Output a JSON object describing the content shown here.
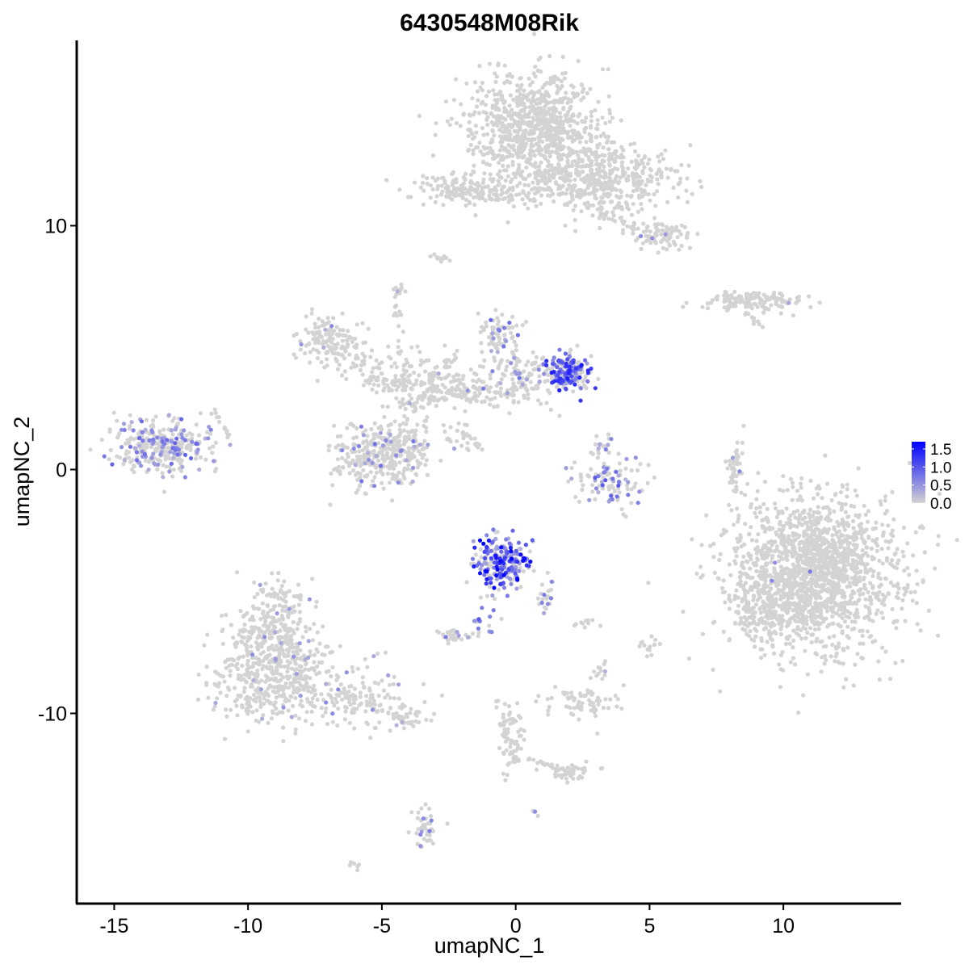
{
  "chart_data": {
    "type": "scatter",
    "title": "6430548M08Rik",
    "xlabel": "umapNC_1",
    "ylabel": "umapNC_2",
    "xlim": [
      -16.4,
      14.4
    ],
    "ylim": [
      -17.8,
      17.6
    ],
    "x_ticks": [
      {
        "value": -15,
        "label": "-15"
      },
      {
        "value": -10,
        "label": "-10"
      },
      {
        "value": -5,
        "label": "-5"
      },
      {
        "value": 0,
        "label": "0"
      },
      {
        "value": 5,
        "label": "5"
      },
      {
        "value": 10,
        "label": "10"
      }
    ],
    "y_ticks": [
      {
        "value": -10,
        "label": "-10"
      },
      {
        "value": 0,
        "label": "0"
      },
      {
        "value": 10,
        "label": "10"
      }
    ],
    "grid": false,
    "legend": {
      "placement": "right",
      "low_color": "#d3d3d3",
      "high_color": "#0000ff",
      "min": 0.0,
      "max": 1.7,
      "ticks": [
        {
          "value": 0.0,
          "label": "0.0"
        },
        {
          "value": 0.5,
          "label": "0.5"
        },
        {
          "value": 1.0,
          "label": "1.0"
        },
        {
          "value": 1.5,
          "label": "1.5"
        }
      ]
    },
    "clusters": [
      {
        "cx": 0.7,
        "cy": 14.0,
        "sx": 1.4,
        "sy": 1.3,
        "n": 900,
        "expr_frac": 0.0,
        "expr_max": 0.5
      },
      {
        "cx": 3.3,
        "cy": 12.0,
        "sx": 1.4,
        "sy": 0.8,
        "n": 450,
        "expr_frac": 0.0,
        "expr_max": 0.5
      },
      {
        "cx": -1.8,
        "cy": 11.5,
        "sx": 1.1,
        "sy": 0.35,
        "n": 150,
        "expr_frac": 0.0,
        "expr_max": 0.5
      },
      {
        "cx": 5.5,
        "cy": 9.6,
        "sx": 0.5,
        "sy": 0.35,
        "n": 80,
        "expr_frac": 0.03,
        "expr_max": 0.6
      },
      {
        "cx": -2.8,
        "cy": 8.7,
        "sx": 0.25,
        "sy": 0.12,
        "n": 12,
        "expr_frac": 0.0,
        "expr_max": 0.5
      },
      {
        "cx": 8.8,
        "cy": 6.9,
        "sx": 1.0,
        "sy": 0.22,
        "n": 140,
        "expr_frac": 0.01,
        "expr_max": 0.5
      },
      {
        "cx": -4.4,
        "cy": 7.3,
        "sx": 0.15,
        "sy": 0.18,
        "n": 12,
        "expr_frac": 0.05,
        "expr_max": 0.5
      },
      {
        "cx": -13.2,
        "cy": 1.0,
        "sx": 1.0,
        "sy": 0.6,
        "n": 320,
        "expr_frac": 0.25,
        "expr_max": 0.9
      },
      {
        "cx": -7.0,
        "cy": 5.3,
        "sx": 0.6,
        "sy": 0.5,
        "n": 110,
        "expr_frac": 0.05,
        "expr_max": 0.6
      },
      {
        "cx": -5.5,
        "cy": 0.5,
        "sx": 0.75,
        "sy": 0.7,
        "n": 220,
        "expr_frac": 0.08,
        "expr_max": 0.8
      },
      {
        "cx": -4.1,
        "cy": 0.8,
        "sx": 0.55,
        "sy": 0.8,
        "n": 160,
        "expr_frac": 0.12,
        "expr_max": 0.8
      },
      {
        "cx": -4.2,
        "cy": 3.9,
        "sx": 1.2,
        "sy": 0.5,
        "n": 120,
        "expr_frac": 0.04,
        "expr_max": 0.5
      },
      {
        "cx": -0.9,
        "cy": 3.2,
        "sx": 1.6,
        "sy": 0.4,
        "n": 130,
        "expr_frac": 0.08,
        "expr_max": 0.7
      },
      {
        "cx": -0.7,
        "cy": 5.5,
        "sx": 0.45,
        "sy": 0.45,
        "n": 70,
        "expr_frac": 0.2,
        "expr_max": 0.9
      },
      {
        "cx": 0.3,
        "cy": 4.2,
        "sx": 0.9,
        "sy": 0.45,
        "n": 90,
        "expr_frac": 0.2,
        "expr_max": 0.9
      },
      {
        "cx": 2.0,
        "cy": 4.0,
        "sx": 0.45,
        "sy": 0.42,
        "n": 170,
        "expr_frac": 0.55,
        "expr_max": 1.5
      },
      {
        "cx": -2.0,
        "cy": 1.2,
        "sx": 0.4,
        "sy": 0.5,
        "n": 20,
        "expr_frac": 0.05,
        "expr_max": 0.6
      },
      {
        "cx": 3.4,
        "cy": -0.5,
        "sx": 0.8,
        "sy": 0.5,
        "n": 90,
        "expr_frac": 0.35,
        "expr_max": 1.0
      },
      {
        "cx": 3.3,
        "cy": 0.8,
        "sx": 0.3,
        "sy": 0.35,
        "n": 20,
        "expr_frac": 0.3,
        "expr_max": 0.9
      },
      {
        "cx": 8.2,
        "cy": -0.2,
        "sx": 0.2,
        "sy": 0.9,
        "n": 45,
        "expr_frac": 0.02,
        "expr_max": 0.6
      },
      {
        "cx": 11.1,
        "cy": -4.3,
        "sx": 1.8,
        "sy": 1.8,
        "n": 1700,
        "expr_frac": 0.002,
        "expr_max": 0.8
      },
      {
        "cx": 9.2,
        "cy": -6.0,
        "sx": 0.6,
        "sy": 0.6,
        "n": 100,
        "expr_frac": 0.0,
        "expr_max": 0.5
      },
      {
        "cx": -0.5,
        "cy": -3.8,
        "sx": 0.6,
        "sy": 0.6,
        "n": 240,
        "expr_frac": 0.7,
        "expr_max": 1.7
      },
      {
        "cx": 1.1,
        "cy": -5.2,
        "sx": 0.2,
        "sy": 0.5,
        "n": 22,
        "expr_frac": 0.15,
        "expr_max": 0.9
      },
      {
        "cx": -1.3,
        "cy": -6.0,
        "sx": 0.3,
        "sy": 0.5,
        "n": 18,
        "expr_frac": 0.7,
        "expr_max": 1.0
      },
      {
        "cx": -2.3,
        "cy": -6.8,
        "sx": 0.4,
        "sy": 0.15,
        "n": 30,
        "expr_frac": 0.2,
        "expr_max": 0.7
      },
      {
        "cx": -9.0,
        "cy": -6.8,
        "sx": 0.9,
        "sy": 1.2,
        "n": 320,
        "expr_frac": 0.04,
        "expr_max": 0.6
      },
      {
        "cx": -9.0,
        "cy": -8.8,
        "sx": 1.5,
        "sy": 0.9,
        "n": 340,
        "expr_frac": 0.04,
        "expr_max": 0.6
      },
      {
        "cx": -5.6,
        "cy": -9.5,
        "sx": 1.3,
        "sy": 0.55,
        "n": 110,
        "expr_frac": 0.06,
        "expr_max": 0.6
      },
      {
        "cx": -4.0,
        "cy": -10.3,
        "sx": 0.4,
        "sy": 0.2,
        "n": 25,
        "expr_frac": 0.1,
        "expr_max": 0.6
      },
      {
        "cx": 2.5,
        "cy": -9.5,
        "sx": 0.8,
        "sy": 0.4,
        "n": 70,
        "expr_frac": 0.0,
        "expr_max": 0.5
      },
      {
        "cx": 3.1,
        "cy": -8.3,
        "sx": 0.2,
        "sy": 0.3,
        "n": 12,
        "expr_frac": 0.1,
        "expr_max": 0.5
      },
      {
        "cx": 2.6,
        "cy": -6.3,
        "sx": 0.3,
        "sy": 0.12,
        "n": 10,
        "expr_frac": 0.1,
        "expr_max": 0.5
      },
      {
        "cx": 5.0,
        "cy": -7.3,
        "sx": 0.2,
        "sy": 0.25,
        "n": 14,
        "expr_frac": 0.0,
        "expr_max": 0.5
      },
      {
        "cx": 2.0,
        "cy": -12.4,
        "sx": 0.5,
        "sy": 0.2,
        "n": 35,
        "expr_frac": 0.0,
        "expr_max": 0.5
      },
      {
        "cx": -0.2,
        "cy": -11.0,
        "sx": 0.3,
        "sy": 0.9,
        "n": 55,
        "expr_frac": 0.0,
        "expr_max": 0.5
      },
      {
        "cx": -3.4,
        "cy": -14.8,
        "sx": 0.25,
        "sy": 0.55,
        "n": 40,
        "expr_frac": 0.25,
        "expr_max": 0.9
      },
      {
        "cx": -6.0,
        "cy": -16.3,
        "sx": 0.15,
        "sy": 0.08,
        "n": 6,
        "expr_frac": 0.0,
        "expr_max": 0.5
      },
      {
        "cx": 0.7,
        "cy": -14.0,
        "sx": 0.1,
        "sy": 0.1,
        "n": 4,
        "expr_frac": 0.5,
        "expr_max": 0.6
      }
    ],
    "bridges": [
      {
        "x1": -7.3,
        "y1": 5.9,
        "x2": -4.0,
        "y2": 2.5,
        "n": 60,
        "spread": 0.35
      },
      {
        "x1": -4.3,
        "y1": 2.5,
        "x2": -1.2,
        "y2": 3.5,
        "n": 70,
        "spread": 0.35
      },
      {
        "x1": -4.4,
        "y1": 6.8,
        "x2": -4.2,
        "y2": 3.0,
        "n": 20,
        "spread": 0.2
      },
      {
        "x1": -2.0,
        "y1": 5.0,
        "x2": -3.5,
        "y2": 3.0,
        "n": 25,
        "spread": 0.3
      },
      {
        "x1": -2.0,
        "y1": 1.5,
        "x2": -1.1,
        "y2": 0.7,
        "n": 18,
        "spread": 0.08
      },
      {
        "x1": -2.4,
        "y1": 11.5,
        "x2": 0.2,
        "y2": 11.0,
        "n": 30,
        "spread": 0.25
      },
      {
        "x1": 0.5,
        "y1": 11.0,
        "x2": 1.7,
        "y2": 12.5,
        "n": 40,
        "spread": 0.4
      },
      {
        "x1": 2.4,
        "y1": 10.8,
        "x2": 4.8,
        "y2": 9.8,
        "n": 35,
        "spread": 0.3
      },
      {
        "x1": 8.5,
        "y1": 6.5,
        "x2": 9.2,
        "y2": 5.8,
        "n": 12,
        "spread": 0.12
      },
      {
        "x1": -11.2,
        "y1": 2.5,
        "x2": -10.7,
        "y2": 1.3,
        "n": 12,
        "spread": 0.12
      },
      {
        "x1": -9.5,
        "y1": -5.0,
        "x2": -8.0,
        "y2": -5.2,
        "n": 15,
        "spread": 0.2
      },
      {
        "x1": -6.5,
        "y1": -9.2,
        "x2": -3.8,
        "y2": -10.4,
        "n": 40,
        "spread": 0.2
      },
      {
        "x1": -0.7,
        "y1": -9.5,
        "x2": 0.0,
        "y2": -12.0,
        "n": 30,
        "spread": 0.15
      },
      {
        "x1": 0.5,
        "y1": -11.8,
        "x2": 2.3,
        "y2": -12.6,
        "n": 20,
        "spread": 0.15
      },
      {
        "x1": 3.5,
        "y1": -0.3,
        "x2": 4.1,
        "y2": -2.0,
        "n": 6,
        "spread": 0.08
      },
      {
        "x1": 8.0,
        "y1": -0.5,
        "x2": 8.4,
        "y2": 1.2,
        "n": 10,
        "spread": 0.1
      }
    ]
  }
}
